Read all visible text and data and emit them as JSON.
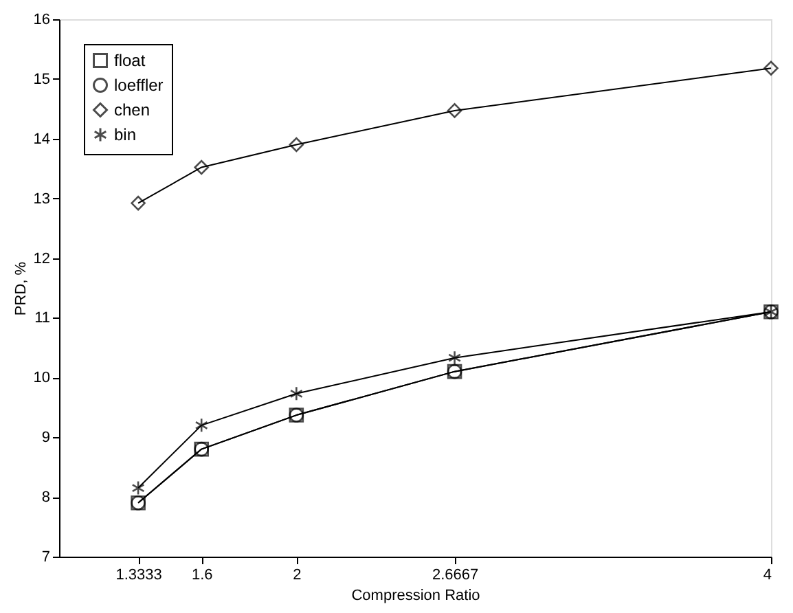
{
  "chart_data": {
    "type": "line",
    "xlabel": "Compression Ratio",
    "ylabel": "PRD, %",
    "x": [
      1.3333,
      1.6,
      2,
      2.6667,
      4
    ],
    "xlim": [
      1,
      4
    ],
    "xticks": [
      1.3333,
      1.6,
      2,
      2.6667,
      4
    ],
    "ylim": [
      7,
      16
    ],
    "yticks": [
      7,
      8,
      9,
      10,
      11,
      12,
      13,
      14,
      15,
      16
    ],
    "grid": false,
    "legend": "top left",
    "line_style": "solid",
    "series": [
      {
        "name": "float",
        "color": "#000000",
        "marker": "square",
        "values": [
          7.9,
          8.8,
          9.37,
          10.1,
          11.1
        ]
      },
      {
        "name": "loeffler",
        "color": "#000000",
        "marker": "circle",
        "values": [
          7.9,
          8.8,
          9.37,
          10.1,
          11.1
        ]
      },
      {
        "name": "chen",
        "color": "#000000",
        "marker": "diamond",
        "values": [
          12.92,
          13.52,
          13.9,
          14.47,
          15.18
        ]
      },
      {
        "name": "bin",
        "color": "#000000",
        "marker": "cross",
        "values": [
          8.15,
          9.2,
          9.73,
          10.33,
          11.1
        ]
      }
    ]
  }
}
